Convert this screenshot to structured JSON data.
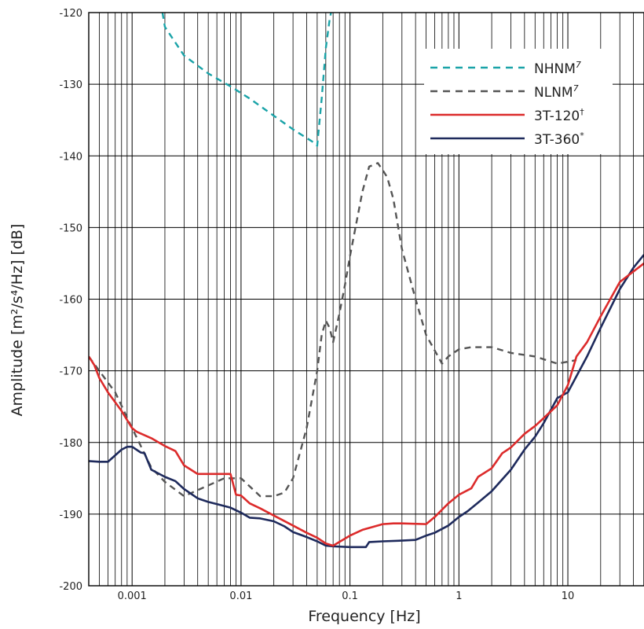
{
  "chart_data": {
    "type": "line",
    "xlabel": "Frequency [Hz]",
    "ylabel": "Amplitude [m²/s⁴/Hz] [dB]",
    "xscale": "log",
    "xlim": [
      0.0004,
      50
    ],
    "ylim": [
      -200,
      -120
    ],
    "grid": true,
    "legend_position": "top-right",
    "x_tick_labels": [
      "0.001",
      "0.01",
      "0.1",
      "1",
      "10"
    ],
    "x_tick_values": [
      0.001,
      0.01,
      0.1,
      1,
      10
    ],
    "y_tick_labels": [
      "-120",
      "-130",
      "-140",
      "-150",
      "-160",
      "-170",
      "-180",
      "-190",
      "-200"
    ],
    "y_tick_values": [
      -120,
      -130,
      -140,
      -150,
      -160,
      -170,
      -180,
      -190,
      -200
    ],
    "series": [
      {
        "name": "NHNM",
        "superscript": "7",
        "color": "#1aa3a8",
        "dash": "dashed",
        "x": [
          0.0019,
          0.002,
          0.003,
          0.005,
          0.008,
          0.012,
          0.02,
          0.03,
          0.045,
          0.05,
          0.055,
          0.06,
          0.065,
          0.067
        ],
        "y": [
          -120,
          -122,
          -126,
          -128.5,
          -130.3,
          -132.0,
          -134.4,
          -136.3,
          -138.0,
          -138.6,
          -132.0,
          -125.0,
          -121.0,
          -120
        ]
      },
      {
        "name": "NLNM",
        "superscript": "7",
        "color": "#555555",
        "dash": "dashed",
        "x": [
          0.0004,
          0.0005,
          0.0007,
          0.001,
          0.0015,
          0.002,
          0.003,
          0.005,
          0.007,
          0.01,
          0.015,
          0.02,
          0.025,
          0.03,
          0.04,
          0.05,
          0.055,
          0.06,
          0.065,
          0.07,
          0.08,
          0.09,
          0.1,
          0.13,
          0.15,
          0.18,
          0.2,
          0.22,
          0.25,
          0.3,
          0.4,
          0.5,
          0.7,
          0.8,
          1,
          1.3,
          2,
          3,
          5,
          8,
          12
        ],
        "y": [
          -168,
          -170,
          -173,
          -178,
          -183.5,
          -185.5,
          -187.5,
          -186,
          -185,
          -185,
          -187.5,
          -187.5,
          -187,
          -185,
          -178,
          -170,
          -165,
          -163,
          -164,
          -166,
          -162,
          -158,
          -154,
          -145,
          -141.5,
          -141,
          -142,
          -143,
          -146,
          -153,
          -160,
          -165,
          -169,
          -168,
          -167,
          -166.7,
          -166.7,
          -167.5,
          -168,
          -169,
          -168.5
        ]
      },
      {
        "name": "3T-120",
        "superscript": "†",
        "color": "#dc2b2b",
        "dash": "solid",
        "x": [
          0.0004,
          0.00045,
          0.0005,
          0.0006,
          0.0008,
          0.001,
          0.0011,
          0.0015,
          0.002,
          0.0025,
          0.003,
          0.004,
          0.005,
          0.006,
          0.008,
          0.009,
          0.01,
          0.012,
          0.015,
          0.02,
          0.03,
          0.04,
          0.05,
          0.06,
          0.07,
          0.1,
          0.13,
          0.2,
          0.25,
          0.3,
          0.5,
          0.6,
          0.8,
          1,
          1.3,
          1.5,
          2,
          2.5,
          3,
          4,
          5,
          6,
          8,
          10,
          12,
          15,
          20,
          30,
          50
        ],
        "y": [
          -168,
          -169.2,
          -171,
          -173,
          -175.6,
          -178,
          -178.5,
          -179.4,
          -180.5,
          -181.2,
          -183.2,
          -184.4,
          -184.4,
          -184.4,
          -184.4,
          -187.3,
          -187.4,
          -188.5,
          -189.2,
          -190.2,
          -191.6,
          -192.6,
          -193.3,
          -194.1,
          -194.4,
          -193.0,
          -192.2,
          -191.4,
          -191.3,
          -191.3,
          -191.4,
          -190.4,
          -188.5,
          -187.3,
          -186.4,
          -184.8,
          -183.6,
          -181.5,
          -180.7,
          -178.8,
          -177.7,
          -176.6,
          -174.8,
          -172.0,
          -168.0,
          -166.0,
          -162.4,
          -157.6,
          -155.0
        ]
      },
      {
        "name": "3T-360",
        "superscript": "*",
        "color": "#1e2a5c",
        "dash": "solid",
        "x": [
          0.0004,
          0.0005,
          0.0006,
          0.0008,
          0.0009,
          0.001,
          0.0012,
          0.0013,
          0.0015,
          0.002,
          0.0025,
          0.003,
          0.004,
          0.005,
          0.006,
          0.008,
          0.01,
          0.012,
          0.015,
          0.02,
          0.025,
          0.03,
          0.04,
          0.05,
          0.06,
          0.07,
          0.1,
          0.14,
          0.15,
          0.2,
          0.3,
          0.4,
          0.5,
          0.6,
          0.8,
          1,
          1.2,
          1.5,
          2,
          3,
          4,
          5,
          6,
          8,
          10,
          15,
          20,
          30,
          40,
          50
        ],
        "y": [
          -182.6,
          -182.7,
          -182.7,
          -181.0,
          -180.6,
          -180.6,
          -181.4,
          -181.5,
          -183.8,
          -184.8,
          -185.4,
          -186.5,
          -187.8,
          -188.3,
          -188.6,
          -189.1,
          -189.8,
          -190.5,
          -190.6,
          -191.0,
          -191.7,
          -192.5,
          -193.2,
          -193.8,
          -194.4,
          -194.5,
          -194.6,
          -194.6,
          -193.9,
          -193.8,
          -193.7,
          -193.6,
          -193.0,
          -192.6,
          -191.6,
          -190.4,
          -189.6,
          -188.4,
          -186.8,
          -183.8,
          -181.0,
          -179.2,
          -177.3,
          -173.8,
          -173.0,
          -168.0,
          -164.0,
          -158.6,
          -155.6,
          -153.8
        ]
      }
    ]
  }
}
